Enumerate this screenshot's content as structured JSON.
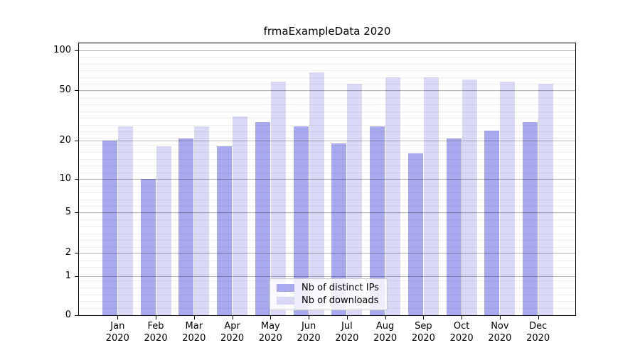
{
  "title": "frmaExampleData 2020",
  "chart_data": {
    "type": "bar",
    "title": "frmaExampleData 2020",
    "categories": [
      "Jan 2020",
      "Feb 2020",
      "Mar 2020",
      "Apr 2020",
      "May 2020",
      "Jun 2020",
      "Jul 2020",
      "Aug 2020",
      "Sep 2020",
      "Oct 2020",
      "Nov 2020",
      "Dec 2020"
    ],
    "x_labels": [
      {
        "month": "Jan",
        "year": "2020"
      },
      {
        "month": "Feb",
        "year": "2020"
      },
      {
        "month": "Mar",
        "year": "2020"
      },
      {
        "month": "Apr",
        "year": "2020"
      },
      {
        "month": "May",
        "year": "2020"
      },
      {
        "month": "Jun",
        "year": "2020"
      },
      {
        "month": "Jul",
        "year": "2020"
      },
      {
        "month": "Aug",
        "year": "2020"
      },
      {
        "month": "Sep",
        "year": "2020"
      },
      {
        "month": "Oct",
        "year": "2020"
      },
      {
        "month": "Nov",
        "year": "2020"
      },
      {
        "month": "Dec",
        "year": "2020"
      }
    ],
    "series": [
      {
        "name": "Nb of distinct IPs",
        "color": "#a9a9f0",
        "values": [
          20,
          10,
          21,
          18,
          28,
          26,
          19,
          26,
          16,
          21,
          24,
          28
        ]
      },
      {
        "name": "Nb of downloads",
        "color": "#d9d9f7",
        "values": [
          26,
          18,
          26,
          31,
          58,
          68,
          56,
          62,
          62,
          60,
          58,
          56
        ]
      }
    ],
    "y_axis": {
      "scale": "log-like (linear segment between 0 and 1)",
      "ticks": [
        100,
        50,
        20,
        10,
        5,
        2,
        1,
        0
      ],
      "ylim": [
        0,
        113
      ]
    },
    "legend": {
      "position": "lower center",
      "entries": [
        "Nb of distinct IPs",
        "Nb of downloads"
      ]
    },
    "grid": true,
    "xlabel": "",
    "ylabel": ""
  }
}
